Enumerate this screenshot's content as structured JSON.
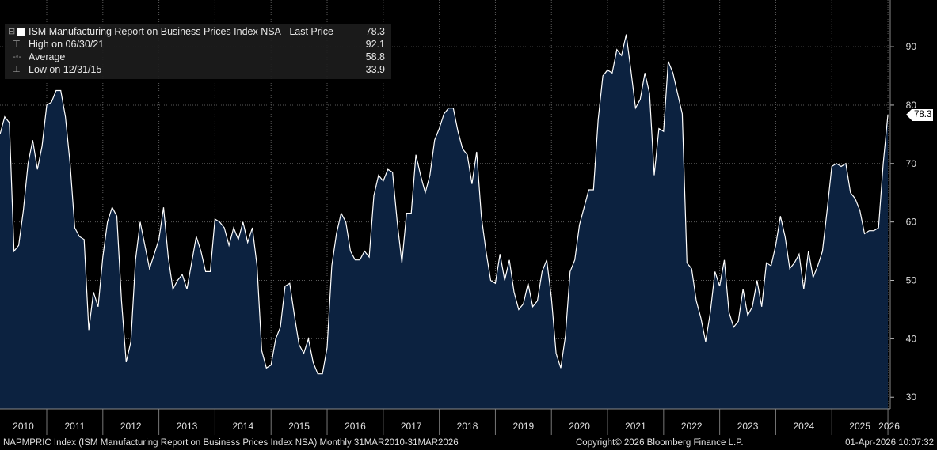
{
  "chart_data": {
    "type": "area",
    "title": "ISM Manufacturing Report on Business Prices Index NSA",
    "legend": {
      "series_label": "ISM Manufacturing Report on Business Prices Index NSA - Last Price",
      "series_value": "78.3",
      "high_label": "High on 06/30/21",
      "high_value": "92.1",
      "avg_label": "Average",
      "avg_value": "58.8",
      "low_label": "Low on 12/31/15",
      "low_value": "33.9"
    },
    "last_value_label": "78.3",
    "ylim": [
      28,
      98
    ],
    "yticks": [
      30,
      40,
      50,
      60,
      70,
      80,
      90
    ],
    "ytick_labels": [
      "30",
      "40",
      "50",
      "60",
      "70",
      "80",
      "90"
    ],
    "year_labels": [
      "2010",
      "2011",
      "2012",
      "2013",
      "2014",
      "2015",
      "2016",
      "2017",
      "2018",
      "2019",
      "2020",
      "2021",
      "2022",
      "2023",
      "2024",
      "2025",
      "2026"
    ],
    "start": "2010-03",
    "frequency": "monthly",
    "values": [
      75,
      78,
      77,
      55,
      56,
      62,
      70,
      74,
      69,
      73,
      80,
      80.5,
      82.5,
      82.5,
      78,
      70,
      59,
      57.5,
      57,
      41.5,
      48,
      45.5,
      54,
      60,
      62.5,
      61,
      46.5,
      36,
      39.5,
      53.5,
      60,
      56,
      52,
      54.5,
      57,
      62.5,
      54,
      48.5,
      50,
      51,
      48.5,
      53,
      57.5,
      55,
      51.5,
      51.5,
      60.5,
      60,
      59,
      56,
      59,
      57,
      60,
      56.5,
      59,
      52.5,
      38,
      35,
      35.5,
      40,
      42,
      49,
      49.5,
      44,
      39,
      37.5,
      40,
      36,
      34,
      34,
      38.5,
      52.5,
      58,
      61.5,
      60,
      55,
      53.5,
      53.5,
      55,
      54,
      64.5,
      68,
      67,
      69,
      68.5,
      60,
      53,
      61.5,
      61.5,
      71.5,
      68,
      65,
      68,
      74,
      76,
      78.5,
      79.5,
      79.5,
      75.5,
      72.5,
      71.5,
      66.5,
      72,
      61,
      55,
      50,
      49.5,
      54.5,
      50,
      53.5,
      48,
      45,
      46,
      49.5,
      45.5,
      46.5,
      51.5,
      53.5,
      47,
      37.5,
      35,
      40.5,
      51.5,
      53.5,
      59.5,
      62.5,
      65.5,
      65.5,
      77.5,
      85,
      86,
      85.5,
      89.5,
      88.5,
      92.1,
      86,
      79.5,
      81,
      85.5,
      82,
      68,
      76,
      75.5,
      87.5,
      85.5,
      82,
      78.5,
      53,
      52,
      46.5,
      43.5,
      39.5,
      44.5,
      51.5,
      49,
      53.5,
      44.5,
      42,
      43,
      48.5,
      44,
      45.5,
      50,
      45.5,
      53,
      52.5,
      56,
      61,
      57.5,
      52,
      53,
      54.5,
      48.5,
      55,
      50.5,
      52.5,
      55,
      62,
      69.5,
      70,
      69.5,
      70,
      65,
      64,
      62,
      58,
      58.5,
      58.5,
      59,
      70,
      78.3
    ]
  },
  "footer": {
    "left": "NAPMPRIC Index (ISM Manufacturing Report on Business Prices Index NSA) Monthly 31MAR2010-31MAR2026",
    "center": "Copyright© 2026 Bloomberg Finance L.P.",
    "right": "01-Apr-2026 10:07:32"
  },
  "colors": {
    "background": "#000000",
    "area_fill": "#0c2240",
    "line": "#ffffff",
    "grid": "#5a5a5a",
    "legend_bg": "#1c1c1c"
  }
}
